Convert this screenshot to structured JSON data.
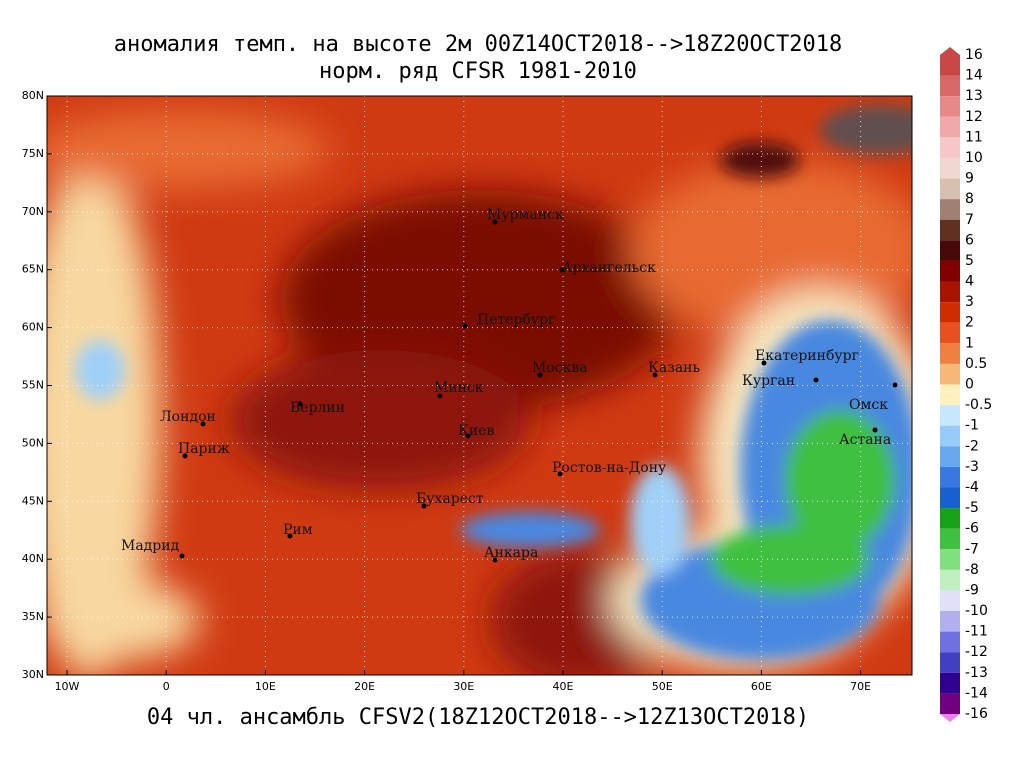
{
  "header": {
    "title": "аномалия темп. на высоте 2м 00Z14OCT2018-->18Z20OCT2018",
    "subtitle": "норм. ряд CFSR 1981-2010"
  },
  "footer": "04 чл. ансамбль CFSV2(18Z12OCT2018-->12Z13OCT2018)",
  "lon_labels": [
    "10W",
    "0",
    "10E",
    "20E",
    "30E",
    "40E",
    "50E",
    "60E",
    "70E"
  ],
  "lat_labels": [
    "30N",
    "35N",
    "40N",
    "45N",
    "50N",
    "55N",
    "60N",
    "65N",
    "70N",
    "75N",
    "80N"
  ],
  "cities": [
    "Мурманск",
    "Архангельск",
    "Петербург",
    "Москва",
    "Казань",
    "Екатеринбург",
    "Курган",
    "Омск",
    "Астана",
    "Минск",
    "Берлин",
    "Лондон",
    "Париж",
    "Киев",
    "Ростов-на-Дону",
    "Бухарест",
    "Рим",
    "Мадрид",
    "Анкара"
  ],
  "colorbar": [
    "16",
    "14",
    "13",
    "12",
    "11",
    "10",
    "9",
    "8",
    "7",
    "6",
    "5",
    "4",
    "3",
    "2",
    "1",
    "0.5",
    "0",
    "-0.5",
    "-1",
    "-2",
    "-3",
    "-4",
    "-5",
    "-6",
    "-7",
    "-8",
    "-9",
    "-10",
    "-11",
    "-12",
    "-13",
    "-14",
    "-16"
  ]
}
